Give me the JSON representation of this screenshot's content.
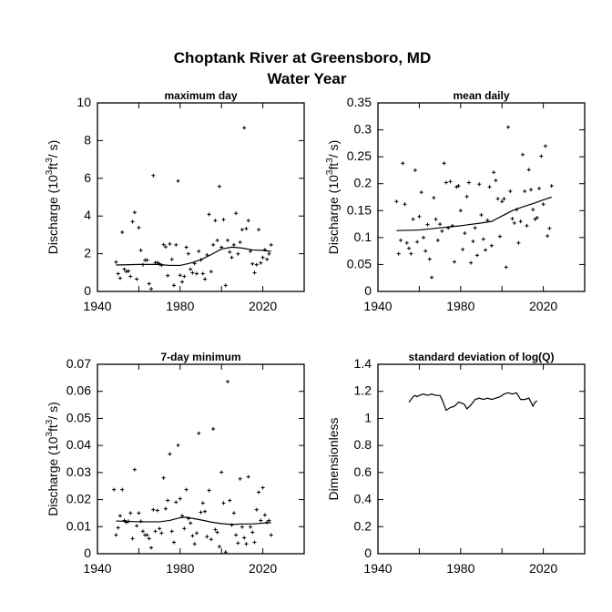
{
  "figure": {
    "title_line1": "Choptank River at Greensboro, MD",
    "title_line2": "Water Year"
  },
  "chart_data": [
    {
      "type": "scatter",
      "title": "maximum day",
      "ylabel": "Discharge (10^3 ft^3 / s)",
      "xlim": [
        1940,
        2040
      ],
      "ylim": [
        0,
        10
      ],
      "xticks": [
        1940,
        1980,
        2020
      ],
      "yticks": [
        0,
        2,
        4,
        6,
        8,
        10
      ],
      "x_start": 1949,
      "y": [
        1.56,
        0.94,
        0.7,
        3.14,
        1.18,
        1.05,
        1.08,
        0.8,
        3.7,
        4.19,
        0.65,
        3.38,
        2.18,
        1.42,
        1.66,
        1.66,
        0.41,
        0.14,
        6.15,
        1.53,
        1.53,
        1.46,
        1.39,
        2.48,
        2.36,
        0.84,
        2.52,
        1.7,
        0.32,
        2.47,
        5.86,
        0.86,
        0.51,
        0.8,
        2.34,
        2.0,
        1.18,
        0.99,
        1.48,
        0.94,
        2.13,
        1.67,
        0.94,
        0.65,
        1.94,
        4.09,
        1.05,
        2.47,
        3.76,
        2.71,
        5.57,
        2.34,
        3.81,
        0.32,
        2.71,
        2.09,
        1.8,
        2.47,
        4.14,
        1.99,
        2.61,
        3.28,
        8.68,
        3.33,
        3.76,
        2.13,
        1.46,
        0.99,
        1.42,
        3.28,
        1.51,
        1.8,
        2.21,
        1.7,
        1.99,
        2.47
      ],
      "trend": {
        "x": [
          1949,
          1960,
          1970,
          1975,
          1980,
          1985,
          1990,
          1995,
          2000,
          2005,
          2010,
          2015,
          2020,
          2024
        ],
        "y": [
          1.4,
          1.43,
          1.43,
          1.38,
          1.38,
          1.5,
          1.68,
          1.95,
          2.25,
          2.35,
          2.3,
          2.2,
          2.18,
          2.12
        ]
      }
    },
    {
      "type": "scatter",
      "title": "mean daily",
      "ylabel": "Discharge (10^3 ft^3 / s)",
      "xlim": [
        1940,
        2040
      ],
      "ylim": [
        0,
        0.35
      ],
      "xticks": [
        1940,
        1980,
        2020
      ],
      "yticks": [
        0,
        0.05,
        0.1,
        0.15,
        0.2,
        0.25,
        0.3,
        0.35
      ],
      "x_start": 1949,
      "y": [
        0.167,
        0.07,
        0.095,
        0.238,
        0.162,
        0.09,
        0.08,
        0.07,
        0.134,
        0.225,
        0.092,
        0.139,
        0.184,
        0.1,
        0.075,
        0.124,
        0.06,
        0.026,
        0.174,
        0.134,
        0.095,
        0.125,
        0.112,
        0.238,
        0.202,
        0.118,
        0.204,
        0.122,
        0.055,
        0.194,
        0.196,
        0.15,
        0.078,
        0.108,
        0.176,
        0.202,
        0.053,
        0.093,
        0.118,
        0.067,
        0.199,
        0.142,
        0.097,
        0.077,
        0.132,
        0.194,
        0.085,
        0.221,
        0.206,
        0.172,
        0.102,
        0.167,
        0.172,
        0.045,
        0.305,
        0.186,
        0.135,
        0.127,
        0.152,
        0.09,
        0.13,
        0.254,
        0.186,
        0.122,
        0.226,
        0.189,
        0.152,
        0.134,
        0.137,
        0.191,
        0.251,
        0.162,
        0.27,
        0.103,
        0.117,
        0.196
      ],
      "trend": {
        "x": [
          1949,
          1960,
          1970,
          1980,
          1990,
          1995,
          2000,
          2005,
          2010,
          2015,
          2020,
          2024
        ],
        "y": [
          0.113,
          0.114,
          0.118,
          0.122,
          0.127,
          0.13,
          0.14,
          0.15,
          0.157,
          0.163,
          0.17,
          0.175
        ]
      }
    },
    {
      "type": "scatter",
      "title": "7-day minimum",
      "ylabel": "Discharge (10^3 ft^3 / s)",
      "xlim": [
        1940,
        2040
      ],
      "ylim": [
        0,
        0.07
      ],
      "xticks": [
        1940,
        1980,
        2020
      ],
      "yticks": [
        0,
        0.01,
        0.02,
        0.03,
        0.04,
        0.05,
        0.06,
        0.07
      ],
      "x_start": 1948,
      "y": [
        0.0237,
        0.0069,
        0.0096,
        0.014,
        0.0237,
        0.0123,
        0.0116,
        0.012,
        0.015,
        0.0056,
        0.0311,
        0.0103,
        0.015,
        0.012,
        0.0083,
        0.0069,
        0.0069,
        0.0056,
        0.0022,
        0.0163,
        0.0083,
        0.016,
        0.0093,
        0.0076,
        0.028,
        0.0166,
        0.0197,
        0.0368,
        0.0083,
        0.0042,
        0.019,
        0.0401,
        0.0203,
        0.014,
        0.0093,
        0.0237,
        0.013,
        0.0113,
        0.0066,
        0.0036,
        0.0076,
        0.0445,
        0.0153,
        0.0187,
        0.0156,
        0.0063,
        0.0234,
        0.0053,
        0.0461,
        0.0089,
        0.0079,
        0.0026,
        0.0301,
        0.0187,
        0.0006,
        0.0636,
        0.0197,
        0.0106,
        0.015,
        0.0069,
        0.0039,
        0.0277,
        0.0099,
        0.0059,
        0.0036,
        0.0284,
        0.0099,
        0.0079,
        0.0042,
        0.0163,
        0.0227,
        0.0123,
        0.0244,
        0.0143,
        0.0116,
        0.0123,
        0.0069
      ],
      "trend": {
        "x": [
          1949,
          1960,
          1970,
          1975,
          1980,
          1983,
          1990,
          1995,
          2000,
          2005,
          2010,
          2015,
          2020,
          2024
        ],
        "y": [
          0.0121,
          0.0118,
          0.0118,
          0.0123,
          0.0133,
          0.0135,
          0.0125,
          0.0117,
          0.0111,
          0.0108,
          0.011,
          0.011,
          0.0113,
          0.0115
        ]
      }
    },
    {
      "type": "line",
      "title": "standard deviation of log(Q)",
      "ylabel": "Dimensionless",
      "xlim": [
        1940,
        2040
      ],
      "ylim": [
        0,
        1.4
      ],
      "xticks": [
        1940,
        1980,
        2020
      ],
      "yticks": [
        0,
        0.2,
        0.4,
        0.6,
        0.8,
        1,
        1.2,
        1.4
      ],
      "series": {
        "x": [
          1955,
          1956,
          1957,
          1958,
          1959,
          1960,
          1962,
          1964,
          1966,
          1968,
          1970,
          1971,
          1972,
          1973,
          1975,
          1977,
          1979,
          1981,
          1982,
          1983,
          1985,
          1987,
          1989,
          1991,
          1993,
          1995,
          1997,
          1999,
          2001,
          2003,
          2005,
          2007,
          2009,
          2011,
          2013,
          2015,
          2016,
          2017
        ],
        "y": [
          1.12,
          1.14,
          1.16,
          1.17,
          1.16,
          1.17,
          1.18,
          1.17,
          1.18,
          1.17,
          1.17,
          1.14,
          1.1,
          1.06,
          1.08,
          1.09,
          1.12,
          1.11,
          1.1,
          1.07,
          1.1,
          1.14,
          1.15,
          1.14,
          1.15,
          1.14,
          1.15,
          1.16,
          1.18,
          1.19,
          1.18,
          1.19,
          1.14,
          1.14,
          1.15,
          1.09,
          1.12,
          1.13
        ]
      }
    }
  ]
}
